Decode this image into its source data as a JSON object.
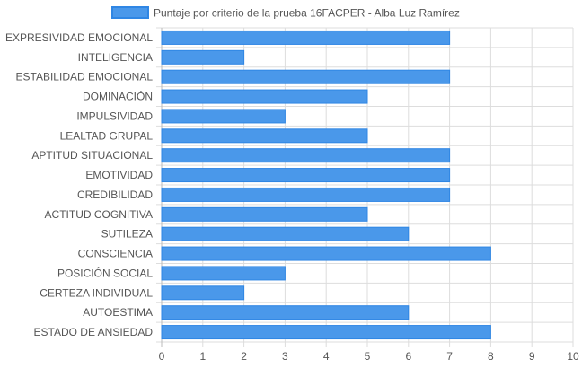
{
  "chart_data": {
    "type": "bar",
    "orientation": "horizontal",
    "categories": [
      "EXPRESIVIDAD EMOCIONAL",
      "INTELIGENCIA",
      "ESTABILIDAD EMOCIONAL",
      "DOMINACIÓN",
      "IMPULSIVIDAD",
      "LEALTAD GRUPAL",
      "APTITUD SITUACIONAL",
      "EMOTIVIDAD",
      "CREDIBILIDAD",
      "ACTITUD COGNITIVA",
      "SUTILEZA",
      "CONSCIENCIA",
      "POSICIÓN SOCIAL",
      "CERTEZA INDIVIDUAL",
      "AUTOESTIMA",
      "ESTADO DE ANSIEDAD"
    ],
    "series": [
      {
        "name": "Puntaje por criterio de la prueba 16FACPER - Alba Luz Ramírez",
        "values": [
          7,
          2,
          7,
          5,
          3,
          5,
          7,
          7,
          7,
          5,
          6,
          8,
          3,
          2,
          6,
          8
        ]
      }
    ],
    "xlim": [
      0,
      10
    ],
    "ticks": [
      "0",
      "1",
      "2",
      "3",
      "4",
      "5",
      "6",
      "7",
      "8",
      "9",
      "10"
    ],
    "legend": "top-center",
    "grid": true,
    "colors": {
      "bar_fill": "#4a98ea",
      "bar_stroke": "#2f86e4",
      "grid": "#dddddd",
      "axis": "#bbbbbb"
    }
  }
}
